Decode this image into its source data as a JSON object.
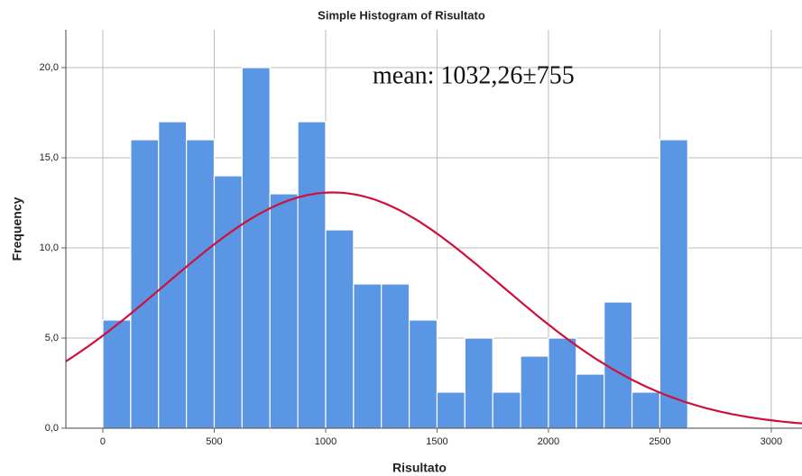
{
  "chart_data": {
    "type": "histogram",
    "title": "Simple Histogram of Risultato",
    "x_label": "Risultato",
    "y_label": "Frequency",
    "annotation": "mean: 1032,26±755",
    "bins": [
      0,
      125,
      250,
      375,
      500,
      625,
      750,
      875,
      1000,
      1125,
      1250,
      1375,
      1500,
      1625,
      1750,
      1875,
      2000,
      2125,
      2250,
      2375,
      2500,
      2625
    ],
    "values": [
      6,
      16,
      17,
      16,
      14,
      20,
      13,
      17,
      11,
      8,
      8,
      6,
      2,
      5,
      2,
      4,
      5,
      3,
      7,
      2,
      16
    ],
    "color": "#5a96e3",
    "curve_color": "#d0103a",
    "normal_curve": {
      "mean": 1032.26,
      "sd": 755
    },
    "xlim": [
      -166,
      3138
    ],
    "ylim": [
      0,
      22.1
    ],
    "xticks": [
      0,
      500,
      1000,
      1500,
      2000,
      2500,
      3000
    ],
    "yticks": [
      {
        "value": 0,
        "label": "0,0"
      },
      {
        "value": 5,
        "label": "5,0"
      },
      {
        "value": 10,
        "label": "10,0"
      },
      {
        "value": 15,
        "label": "15,0"
      },
      {
        "value": 20,
        "label": "20,0"
      }
    ],
    "grid": true
  }
}
